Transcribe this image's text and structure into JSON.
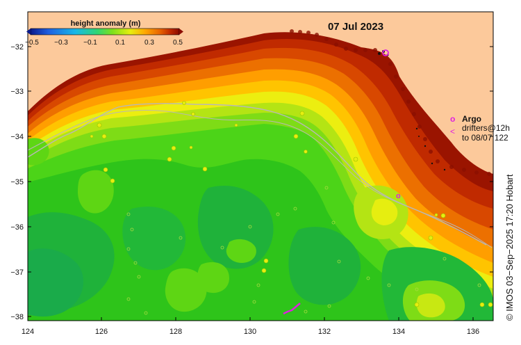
{
  "map": {
    "date": "07 Jul 2023",
    "x_ticks": [
      "124",
      "126",
      "128",
      "130",
      "132",
      "134",
      "136"
    ],
    "y_ticks": [
      "−32",
      "−33",
      "−34",
      "−35",
      "−36",
      "−37",
      "−38"
    ]
  },
  "colorbar": {
    "title": "height anomaly (m)",
    "labels": [
      "−0.5",
      "−0.3",
      "−0.1",
      "0.1",
      "0.3",
      "0.5"
    ],
    "colors": [
      "#0a1a8c",
      "#1f5fe0",
      "#18b8e8",
      "#32d672",
      "#7fe01c",
      "#e6ee10",
      "#ffa800",
      "#e86400",
      "#c02a00",
      "#8c0c00"
    ]
  },
  "legend": {
    "argo_symbol": "o",
    "argo_label": "Argo",
    "drifter_symbol": "<",
    "drifter_line1": "drifters@12h",
    "drifter_line2": "to 08/07 122"
  },
  "credit": "© IMOS 03−Sep−2025 17:20 Hobart",
  "colors": {
    "land": "#fcc99b",
    "argo": "#e020e0",
    "track": "#b8b8b8"
  }
}
